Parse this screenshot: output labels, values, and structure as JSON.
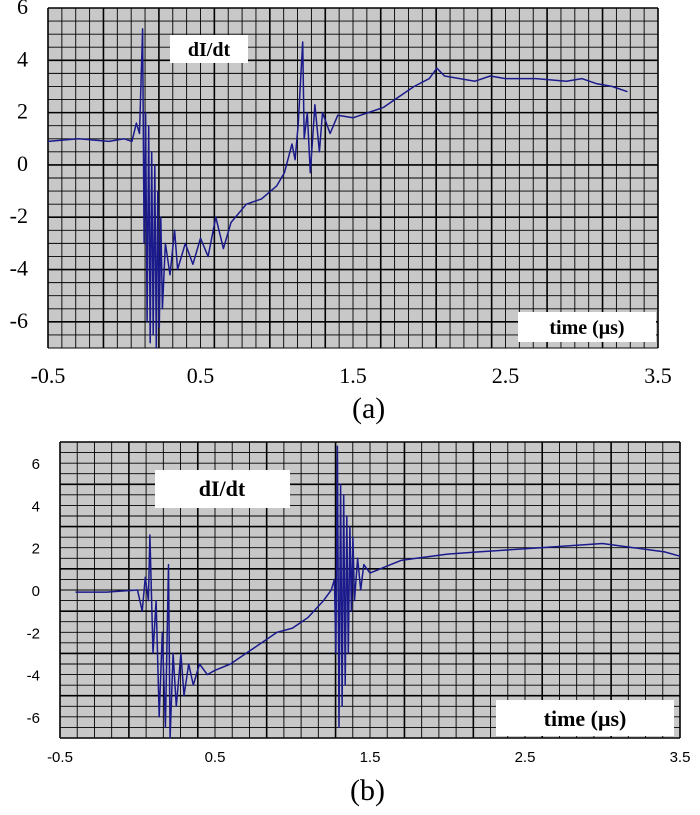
{
  "chart_data": [
    {
      "id": "a",
      "type": "line",
      "caption": "(a)",
      "series_label": "dI/dt",
      "axis_label": "time (μs)",
      "xlim": [
        -0.5,
        3.5
      ],
      "ylim": [
        -7,
        6
      ],
      "x_ticks": [
        "-0.5",
        "0.5",
        "1.5",
        "2.5",
        "3.5"
      ],
      "y_ticks": [
        "6",
        "4",
        "2",
        "0",
        "-2",
        "-4",
        "-6"
      ],
      "x_tick_values": [
        -0.5,
        0.5,
        1.5,
        2.5,
        3.5
      ],
      "y_tick_values": [
        6,
        4,
        2,
        0,
        -2,
        -4,
        -6
      ],
      "grid": true,
      "series": [
        {
          "points": [
            [
              -0.5,
              0.9
            ],
            [
              -0.3,
              1.0
            ],
            [
              -0.1,
              0.9
            ],
            [
              0.0,
              1.0
            ],
            [
              0.05,
              0.9
            ],
            [
              0.08,
              1.6
            ],
            [
              0.1,
              1.2
            ],
            [
              0.12,
              5.2
            ],
            [
              0.13,
              -3.0
            ],
            [
              0.14,
              2.0
            ],
            [
              0.15,
              -6.0
            ],
            [
              0.16,
              1.5
            ],
            [
              0.17,
              -6.8
            ],
            [
              0.18,
              0.5
            ],
            [
              0.19,
              -6.5
            ],
            [
              0.2,
              0.0
            ],
            [
              0.21,
              -7.0
            ],
            [
              0.22,
              -1.0
            ],
            [
              0.23,
              -6.2
            ],
            [
              0.24,
              -2.0
            ],
            [
              0.25,
              -5.5
            ],
            [
              0.27,
              -3.0
            ],
            [
              0.3,
              -4.2
            ],
            [
              0.33,
              -2.5
            ],
            [
              0.35,
              -4.0
            ],
            [
              0.4,
              -3.0
            ],
            [
              0.45,
              -3.8
            ],
            [
              0.5,
              -2.8
            ],
            [
              0.55,
              -3.5
            ],
            [
              0.6,
              -2.0
            ],
            [
              0.65,
              -3.2
            ],
            [
              0.7,
              -2.2
            ],
            [
              0.8,
              -1.5
            ],
            [
              0.9,
              -1.3
            ],
            [
              1.0,
              -0.8
            ],
            [
              1.05,
              -0.3
            ],
            [
              1.1,
              0.8
            ],
            [
              1.12,
              0.2
            ],
            [
              1.14,
              1.5
            ],
            [
              1.17,
              4.7
            ],
            [
              1.18,
              1.0
            ],
            [
              1.2,
              2.0
            ],
            [
              1.22,
              -0.3
            ],
            [
              1.25,
              2.3
            ],
            [
              1.28,
              0.5
            ],
            [
              1.3,
              2.0
            ],
            [
              1.35,
              1.2
            ],
            [
              1.4,
              1.9
            ],
            [
              1.5,
              1.8
            ],
            [
              1.6,
              2.0
            ],
            [
              1.7,
              2.2
            ],
            [
              1.8,
              2.6
            ],
            [
              1.9,
              3.0
            ],
            [
              2.0,
              3.3
            ],
            [
              2.05,
              3.7
            ],
            [
              2.1,
              3.4
            ],
            [
              2.2,
              3.3
            ],
            [
              2.3,
              3.2
            ],
            [
              2.4,
              3.4
            ],
            [
              2.5,
              3.3
            ],
            [
              2.7,
              3.3
            ],
            [
              2.9,
              3.2
            ],
            [
              3.0,
              3.3
            ],
            [
              3.1,
              3.1
            ],
            [
              3.2,
              3.0
            ],
            [
              3.3,
              2.8
            ]
          ]
        }
      ]
    },
    {
      "id": "b",
      "type": "line",
      "caption": "(b)",
      "series_label": "dI/dt",
      "axis_label": "time (μs)",
      "xlim": [
        -0.5,
        3.5
      ],
      "ylim": [
        -7,
        7
      ],
      "x_ticks": [
        "-0.5",
        "0.5",
        "1.5",
        "2.5",
        "3.5"
      ],
      "y_ticks": [
        "6",
        "4",
        "2",
        "0",
        "-2",
        "-4",
        "-6"
      ],
      "x_tick_values": [
        -0.5,
        0.5,
        1.5,
        2.5,
        3.5
      ],
      "y_tick_values": [
        6,
        4,
        2,
        0,
        -2,
        -4,
        -6
      ],
      "grid": true,
      "series": [
        {
          "points": [
            [
              -0.4,
              -0.1
            ],
            [
              -0.2,
              -0.1
            ],
            [
              0.0,
              0.0
            ],
            [
              0.03,
              -1.0
            ],
            [
              0.05,
              0.6
            ],
            [
              0.07,
              -0.5
            ],
            [
              0.08,
              2.6
            ],
            [
              0.1,
              -3.0
            ],
            [
              0.12,
              -0.5
            ],
            [
              0.14,
              -6.0
            ],
            [
              0.16,
              -2.0
            ],
            [
              0.18,
              -6.5
            ],
            [
              0.2,
              1.2
            ],
            [
              0.21,
              -7.0
            ],
            [
              0.23,
              -3.0
            ],
            [
              0.25,
              -5.5
            ],
            [
              0.28,
              -3.0
            ],
            [
              0.3,
              -5.0
            ],
            [
              0.33,
              -3.5
            ],
            [
              0.36,
              -4.5
            ],
            [
              0.4,
              -3.5
            ],
            [
              0.45,
              -4.0
            ],
            [
              0.5,
              -3.8
            ],
            [
              0.6,
              -3.5
            ],
            [
              0.7,
              -3.0
            ],
            [
              0.8,
              -2.5
            ],
            [
              0.9,
              -2.0
            ],
            [
              1.0,
              -1.8
            ],
            [
              1.1,
              -1.3
            ],
            [
              1.2,
              -0.5
            ],
            [
              1.25,
              0.0
            ],
            [
              1.27,
              0.5
            ],
            [
              1.28,
              -3.0
            ],
            [
              1.29,
              6.8
            ],
            [
              1.3,
              -6.5
            ],
            [
              1.31,
              5.0
            ],
            [
              1.32,
              -5.5
            ],
            [
              1.33,
              4.5
            ],
            [
              1.34,
              -4.5
            ],
            [
              1.35,
              3.5
            ],
            [
              1.36,
              -3.0
            ],
            [
              1.37,
              3.0
            ],
            [
              1.38,
              -1.0
            ],
            [
              1.39,
              2.5
            ],
            [
              1.4,
              -0.5
            ],
            [
              1.42,
              1.5
            ],
            [
              1.44,
              0.0
            ],
            [
              1.46,
              1.2
            ],
            [
              1.5,
              0.8
            ],
            [
              1.6,
              1.1
            ],
            [
              1.7,
              1.4
            ],
            [
              1.8,
              1.5
            ],
            [
              2.0,
              1.7
            ],
            [
              2.2,
              1.8
            ],
            [
              2.4,
              1.9
            ],
            [
              2.6,
              2.0
            ],
            [
              2.8,
              2.1
            ],
            [
              3.0,
              2.2
            ],
            [
              3.2,
              2.0
            ],
            [
              3.4,
              1.8
            ],
            [
              3.5,
              1.6
            ]
          ]
        }
      ]
    }
  ]
}
